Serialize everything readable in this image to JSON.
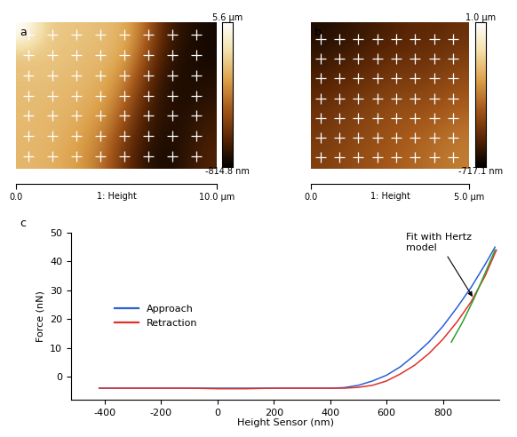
{
  "chart_data": [
    {
      "type": "heatmap",
      "panel_label": "a",
      "xlabel": "1: Height",
      "xlim": [
        0,
        10
      ],
      "ylim": [
        0,
        7.2
      ],
      "xticks": [
        {
          "value": 0,
          "label": "0.0"
        },
        {
          "value": 10,
          "label": "10.0 µm"
        }
      ],
      "tick_labels": "x",
      "cells": [
        [
          5600,
          3900,
          3800,
          3700,
          3600,
          3300,
          2000,
          200,
          -300,
          -500
        ],
        [
          3800,
          3800,
          3700,
          3600,
          3500,
          3100,
          1500,
          0,
          -400,
          -500
        ],
        [
          3700,
          3700,
          3600,
          3500,
          3300,
          2600,
          900,
          -200,
          -400,
          -400
        ],
        [
          3600,
          3600,
          3500,
          3400,
          3100,
          2000,
          500,
          -300,
          -400,
          -200
        ],
        [
          3600,
          3500,
          3400,
          3200,
          2700,
          1500,
          200,
          -300,
          -300,
          0
        ],
        [
          3500,
          3500,
          3300,
          3000,
          2300,
          1000,
          0,
          -400,
          -200,
          200
        ],
        [
          3500,
          3400,
          3200,
          2800,
          2000,
          700,
          -200,
          -500,
          -100,
          300
        ]
      ],
      "color_range": [
        -814.8,
        5600
      ],
      "color_ticks": [
        {
          "value": 5600,
          "label": "5.6 µm"
        },
        {
          "value": -814.8,
          "label": "-814.8 nm"
        }
      ],
      "points": {
        "x": [
          0.6,
          1.8,
          3.0,
          4.2,
          5.4,
          6.6,
          7.8,
          9.0
        ],
        "y": [
          0.6,
          1.6,
          2.6,
          3.6,
          4.6,
          5.6,
          6.6
        ]
      },
      "marker": "+",
      "color": "#ffffff"
    },
    {
      "type": "heatmap",
      "panel_label": "b",
      "xlabel": "1: Height",
      "xlim": [
        0,
        5
      ],
      "ylim": [
        0,
        4.6
      ],
      "xticks": [
        {
          "value": 0,
          "label": "0.0"
        },
        {
          "value": 5,
          "label": "5.0 µm"
        }
      ],
      "tick_labels": "x",
      "cells": [
        [
          -600,
          -550,
          -500,
          -450,
          -400,
          -350,
          -350,
          -300
        ],
        [
          -500,
          -450,
          -400,
          -350,
          -300,
          -300,
          -250,
          -200
        ],
        [
          -400,
          -350,
          -300,
          -250,
          -200,
          -200,
          -150,
          -100
        ],
        [
          -300,
          -250,
          -200,
          -150,
          -100,
          -100,
          -50,
          0
        ],
        [
          -250,
          -200,
          -150,
          -100,
          -50,
          0,
          50,
          100
        ],
        [
          -200,
          -150,
          -100,
          -50,
          0,
          50,
          100,
          150
        ]
      ],
      "color_range": [
        -717.1,
        1000
      ],
      "color_ticks": [
        {
          "value": 1000,
          "label": "1.0 µm"
        },
        {
          "value": -717.1,
          "label": "-717.1 nm"
        }
      ],
      "points": {
        "x": [
          0.3,
          0.9,
          1.5,
          2.1,
          2.7,
          3.3,
          3.9,
          4.5
        ],
        "y": [
          0.35,
          0.97,
          1.59,
          2.21,
          2.83,
          3.45,
          4.07
        ]
      },
      "marker": "+",
      "color": "#ffffff"
    },
    {
      "type": "line",
      "panel_label": "c",
      "xlabel": "Height Sensor (nm)",
      "ylabel": "Force (nN)",
      "xlim": [
        -520,
        1000
      ],
      "ylim": [
        -8,
        50
      ],
      "xticks": [
        -400,
        -200,
        0,
        200,
        400,
        600,
        800
      ],
      "yticks": [
        0,
        10,
        20,
        30,
        40,
        50
      ],
      "legend": "center left",
      "series": [
        {
          "name": "Approach",
          "color": "#2a5fd6",
          "x": [
            -420,
            -300,
            -200,
            -100,
            0,
            100,
            200,
            300,
            400,
            450,
            500,
            550,
            600,
            650,
            700,
            750,
            800,
            850,
            900,
            950,
            985
          ],
          "values": [
            -4,
            -4,
            -4,
            -4,
            -4,
            -4,
            -4,
            -4,
            -4,
            -3.8,
            -3,
            -1.5,
            0.5,
            3.5,
            7.5,
            12,
            17.5,
            24,
            31,
            39,
            45
          ]
        },
        {
          "name": "Retraction",
          "color": "#e0302a",
          "x": [
            -420,
            -300,
            -200,
            -100,
            0,
            100,
            200,
            300,
            400,
            450,
            500,
            550,
            600,
            650,
            700,
            750,
            800,
            850,
            900,
            950,
            990
          ],
          "values": [
            -4,
            -4,
            -4,
            -4,
            -4.2,
            -4.2,
            -4,
            -4,
            -4,
            -4,
            -3.7,
            -3,
            -1.5,
            1,
            4,
            8,
            13,
            19,
            26,
            35,
            44
          ]
        },
        {
          "color": "#2ca02c",
          "x": [
            830,
            870,
            910,
            950,
            985
          ],
          "values": [
            12,
            19,
            27,
            36,
            44
          ]
        }
      ],
      "annotation": "Fit with Hertz\nmodel"
    }
  ]
}
